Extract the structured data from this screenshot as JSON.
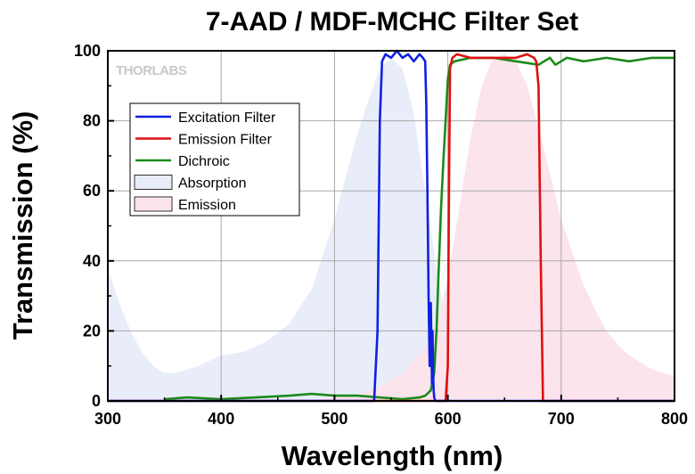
{
  "chart_data": {
    "type": "line",
    "title": "7-AAD / MDF-MCHC Filter Set",
    "xlabel": "Wavelength (nm)",
    "ylabel": "Transmission (%)",
    "xlim": [
      300,
      800
    ],
    "ylim": [
      0,
      100
    ],
    "xticks": [
      300,
      400,
      500,
      600,
      700,
      800
    ],
    "yticks": [
      0,
      20,
      40,
      60,
      80,
      100
    ],
    "grid": true,
    "legend_position": "upper-left",
    "watermark": "THORLABS",
    "series": [
      {
        "name": "Excitation Filter",
        "kind": "line",
        "color": "#1020e0",
        "x": [
          300,
          535,
          538,
          540,
          542,
          545,
          550,
          555,
          560,
          565,
          570,
          575,
          578,
          580,
          581,
          582,
          583,
          584,
          584.5,
          585,
          585.5,
          586,
          586.5,
          587,
          587.5,
          588,
          589,
          590,
          800
        ],
        "y": [
          0,
          0,
          20,
          80,
          97,
          99,
          98,
          100,
          98,
          99,
          97,
          99,
          98,
          97,
          85,
          60,
          30,
          10,
          25,
          28,
          15,
          5,
          20,
          8,
          3,
          1,
          0,
          0,
          0
        ]
      },
      {
        "name": "Emission Filter",
        "kind": "line",
        "color": "#e01010",
        "x": [
          300,
          598,
          600,
          601,
          602,
          604,
          608,
          620,
          640,
          660,
          670,
          676,
          678,
          680,
          682,
          684,
          800
        ],
        "y": [
          0,
          0,
          10,
          60,
          95,
          98,
          99,
          98,
          98,
          98,
          99,
          98,
          97,
          90,
          40,
          0,
          0
        ]
      },
      {
        "name": "Dichroic",
        "kind": "line",
        "color": "#1a8a1a",
        "x": [
          350,
          370,
          400,
          430,
          460,
          480,
          500,
          520,
          540,
          560,
          575,
          580,
          585,
          588,
          590,
          592,
          594,
          596,
          598,
          600,
          602,
          606,
          620,
          640,
          660,
          680,
          690,
          695,
          700,
          705,
          720,
          740,
          760,
          780,
          800
        ],
        "y": [
          0.5,
          1,
          0.5,
          1,
          1.5,
          2,
          1.5,
          1.5,
          1,
          0.5,
          1,
          1.5,
          3,
          8,
          20,
          38,
          55,
          68,
          80,
          92,
          96,
          97,
          98,
          98,
          97,
          96,
          98,
          96,
          97,
          98,
          97,
          98,
          97,
          98,
          98
        ]
      },
      {
        "name": "Absorption",
        "kind": "area",
        "color": "#e9edf9",
        "x": [
          300,
          310,
          320,
          330,
          340,
          350,
          360,
          370,
          380,
          400,
          420,
          440,
          460,
          480,
          500,
          510,
          520,
          530,
          540,
          550,
          560,
          570,
          580,
          590,
          600,
          610,
          620,
          630,
          640
        ],
        "y": [
          38,
          28,
          20,
          14,
          10,
          8,
          8,
          9,
          10,
          13,
          14,
          17,
          22,
          32,
          52,
          64,
          76,
          86,
          95,
          98,
          95,
          82,
          60,
          38,
          20,
          10,
          5,
          2,
          0
        ]
      },
      {
        "name": "Emission",
        "kind": "area",
        "color": "#fbe4ec",
        "x": [
          480,
          500,
          520,
          540,
          560,
          580,
          590,
          600,
          610,
          620,
          630,
          640,
          650,
          660,
          670,
          680,
          690,
          700,
          710,
          720,
          730,
          740,
          750,
          760,
          780,
          800
        ],
        "y": [
          0,
          1,
          2,
          4,
          8,
          15,
          22,
          35,
          55,
          75,
          90,
          98,
          99,
          97,
          90,
          78,
          65,
          52,
          42,
          33,
          26,
          20,
          16,
          13,
          9,
          7
        ]
      }
    ]
  }
}
